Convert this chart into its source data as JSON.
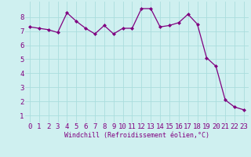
{
  "x": [
    0,
    1,
    2,
    3,
    4,
    5,
    6,
    7,
    8,
    9,
    10,
    11,
    12,
    13,
    14,
    15,
    16,
    17,
    18,
    19,
    20,
    21,
    22,
    23
  ],
  "y": [
    7.3,
    7.2,
    7.1,
    6.9,
    8.3,
    7.7,
    7.2,
    6.8,
    7.4,
    6.8,
    7.2,
    7.2,
    8.6,
    8.6,
    7.3,
    7.4,
    7.6,
    8.2,
    7.5,
    5.1,
    4.5,
    2.1,
    1.6,
    1.4
  ],
  "line_color": "#800080",
  "marker": "D",
  "marker_size": 2.0,
  "linewidth": 0.9,
  "xlabel": "Windchill (Refroidissement éolien,°C)",
  "ylabel_ticks": [
    1,
    2,
    3,
    4,
    5,
    6,
    7,
    8
  ],
  "xlim": [
    -0.5,
    23.5
  ],
  "ylim": [
    0.5,
    9.1
  ],
  "bg_color": "#cff0f0",
  "grid_color": "#aadddd",
  "xlabel_color": "#800080",
  "xlabel_fontsize": 6.0,
  "tick_fontsize": 6.5,
  "tick_color": "#800080"
}
